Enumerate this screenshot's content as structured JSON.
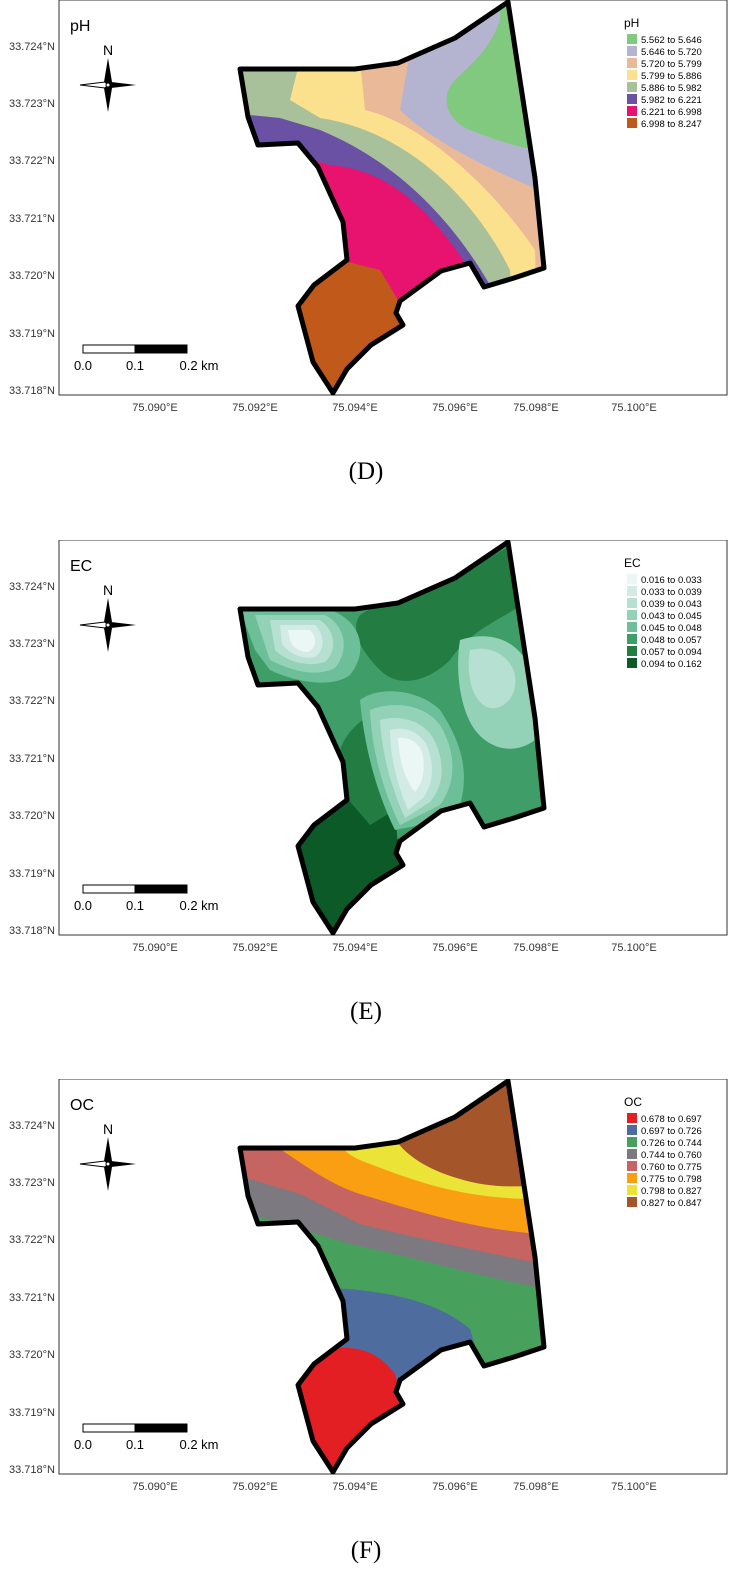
{
  "x_axis_labels": [
    "75.090°E",
    "75.092°E",
    "75.094°E",
    "75.096°E",
    "75.098°E",
    "75.100°E"
  ],
  "y_axis_labels": [
    "33.718°N",
    "33.719°N",
    "33.720°N",
    "33.721°N",
    "33.722°N",
    "33.723°N",
    "33.724°N"
  ],
  "north_label": "N",
  "scalebar_labels": [
    "0.0",
    "0.1",
    "0.2 km"
  ],
  "panels": [
    {
      "title": "pH",
      "caption": "(D)",
      "legend_title": "pH",
      "legend": [
        {
          "label": "5.562 to 5.646",
          "color": "#80c97e"
        },
        {
          "label": "5.646 to 5.720",
          "color": "#b4b4d0"
        },
        {
          "label": "5.720 to 5.799",
          "color": "#eab998"
        },
        {
          "label": "5.799 to 5.886",
          "color": "#fbe08e"
        },
        {
          "label": "5.886 to 5.982",
          "color": "#a9c19a"
        },
        {
          "label": "5.982 to 6.221",
          "color": "#6a51a3"
        },
        {
          "label": "6.221 to 6.998",
          "color": "#e8136f"
        },
        {
          "label": "6.998 to 8.247",
          "color": "#c0591a"
        }
      ]
    },
    {
      "title": "EC",
      "caption": "(E)",
      "legend_title": "EC",
      "legend": [
        {
          "label": "0.016 to 0.033",
          "color": "#eaf7f5"
        },
        {
          "label": "0.033 to 0.039",
          "color": "#d2ece5"
        },
        {
          "label": "0.039 to 0.043",
          "color": "#b5e0d2"
        },
        {
          "label": "0.043 to 0.045",
          "color": "#94d2b8"
        },
        {
          "label": "0.045 to 0.048",
          "color": "#6cbf98"
        },
        {
          "label": "0.048 to 0.057",
          "color": "#3f9e67"
        },
        {
          "label": "0.057 to 0.094",
          "color": "#237c41"
        },
        {
          "label": "0.094 to 0.162",
          "color": "#0c5a28"
        }
      ]
    },
    {
      "title": "OC",
      "caption": "(F)",
      "legend_title": "OC",
      "legend": [
        {
          "label": "0.678 to 0.697",
          "color": "#e41f24"
        },
        {
          "label": "0.697 to 0.726",
          "color": "#4f6c9f"
        },
        {
          "label": "0.726 to 0.744",
          "color": "#47a05c"
        },
        {
          "label": "0.744 to 0.760",
          "color": "#7c7a80"
        },
        {
          "label": "0.760 to 0.775",
          "color": "#c56461"
        },
        {
          "label": "0.775 to 0.798",
          "color": "#fb9f12"
        },
        {
          "label": "0.798 to 0.827",
          "color": "#ece337"
        },
        {
          "label": "0.827 to 0.847",
          "color": "#a5552a"
        }
      ]
    }
  ]
}
